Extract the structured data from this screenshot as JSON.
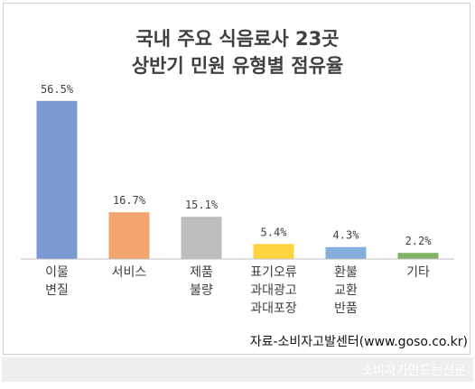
{
  "chart_data": {
    "type": "bar",
    "title_lines": [
      "국내 주요 식음료사 23곳",
      "상반기 민원 유형별 점유율"
    ],
    "categories": [
      [
        "이물",
        "변질"
      ],
      [
        "서비스"
      ],
      [
        "제품",
        "불량"
      ],
      [
        "표기오류",
        "과대광고",
        "과대포장"
      ],
      [
        "환불",
        "교환",
        "반품"
      ],
      [
        "기타"
      ]
    ],
    "values": [
      56.5,
      16.7,
      15.1,
      5.4,
      4.3,
      2.2
    ],
    "value_labels": [
      "56.5%",
      "16.7%",
      "15.1%",
      "5.4%",
      "4.3%",
      "2.2%"
    ],
    "colors": [
      "#7b9ad4",
      "#f2a56e",
      "#bdbdbd",
      "#ffd23f",
      "#86aedb",
      "#82b366"
    ],
    "ylim": [
      0,
      60
    ],
    "grid": false,
    "legend": "none"
  },
  "source_text": "자료-소비자고발센터(www.goso.co.kr)",
  "watermark_text": "소비자가만드는신문"
}
